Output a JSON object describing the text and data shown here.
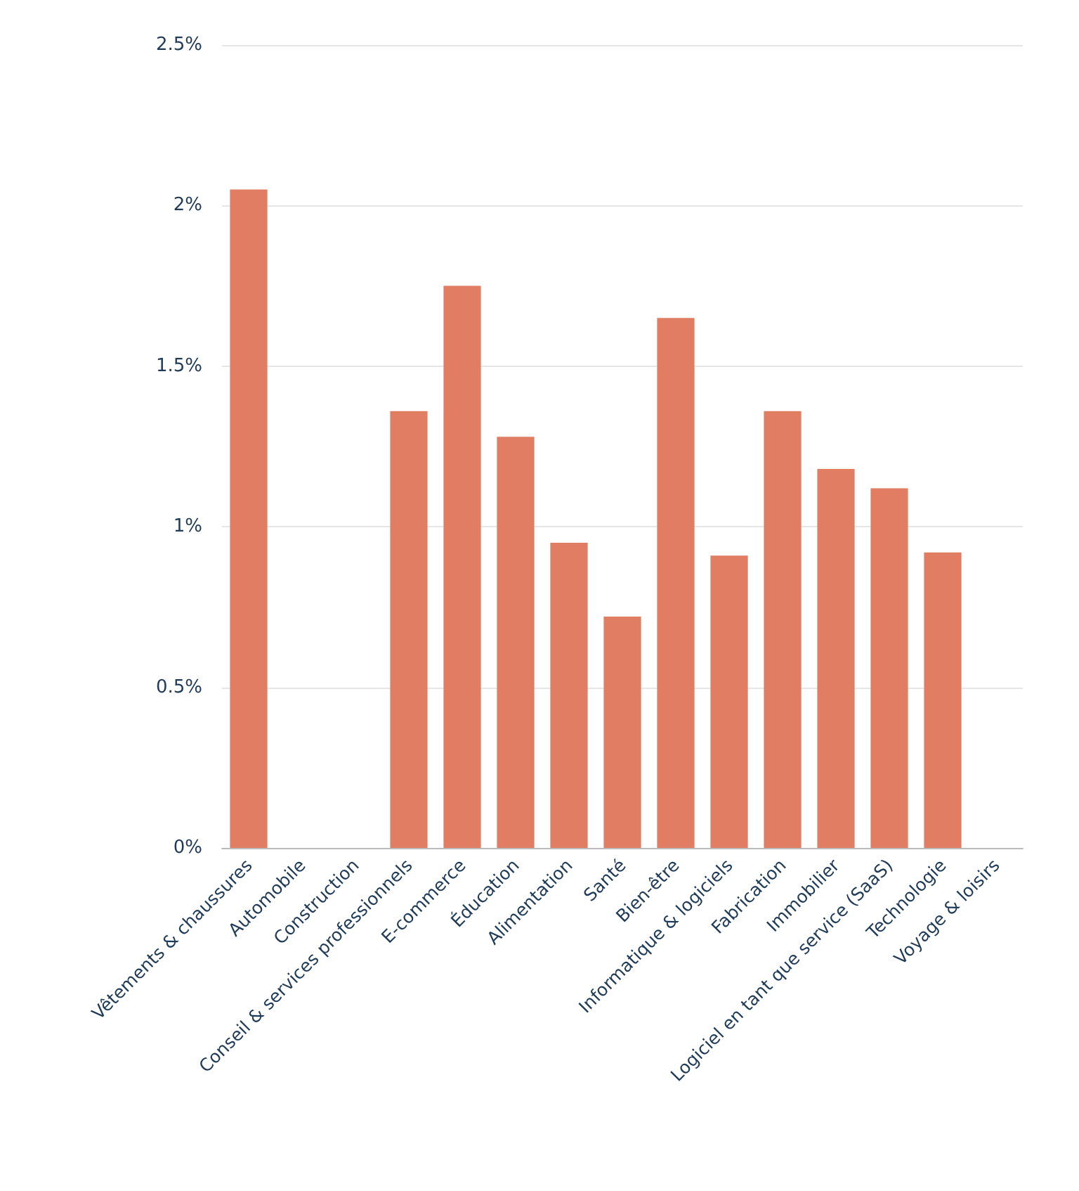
{
  "chart_data": {
    "type": "bar",
    "categories": [
      "Vêtements & chaussures",
      "Automobile",
      "Construction",
      "Conseil & services professionnels",
      "E-commerce",
      "Éducation",
      "Alimentation",
      "Santé",
      "Bien-être",
      "Informatique & logiciels",
      "Fabrication",
      "Immobilier",
      "Logiciel en tant que service (SaaS)",
      "Technologie",
      "Voyage & loisirs"
    ],
    "values": [
      2.05,
      0,
      0,
      1.36,
      1.75,
      1.28,
      0.95,
      0.72,
      1.65,
      0.91,
      1.36,
      1.18,
      1.12,
      0.92,
      0
    ],
    "color": "#e07d62",
    "ylim": [
      0,
      2.5
    ],
    "yticks": [
      {
        "value": 0,
        "label": "0%"
      },
      {
        "value": 0.5,
        "label": "0.5%"
      },
      {
        "value": 1,
        "label": "1%"
      },
      {
        "value": 1.5,
        "label": "1.5%"
      },
      {
        "value": 2,
        "label": "2%"
      },
      {
        "value": 2.5,
        "label": "2.5%"
      }
    ],
    "grid": "y"
  }
}
